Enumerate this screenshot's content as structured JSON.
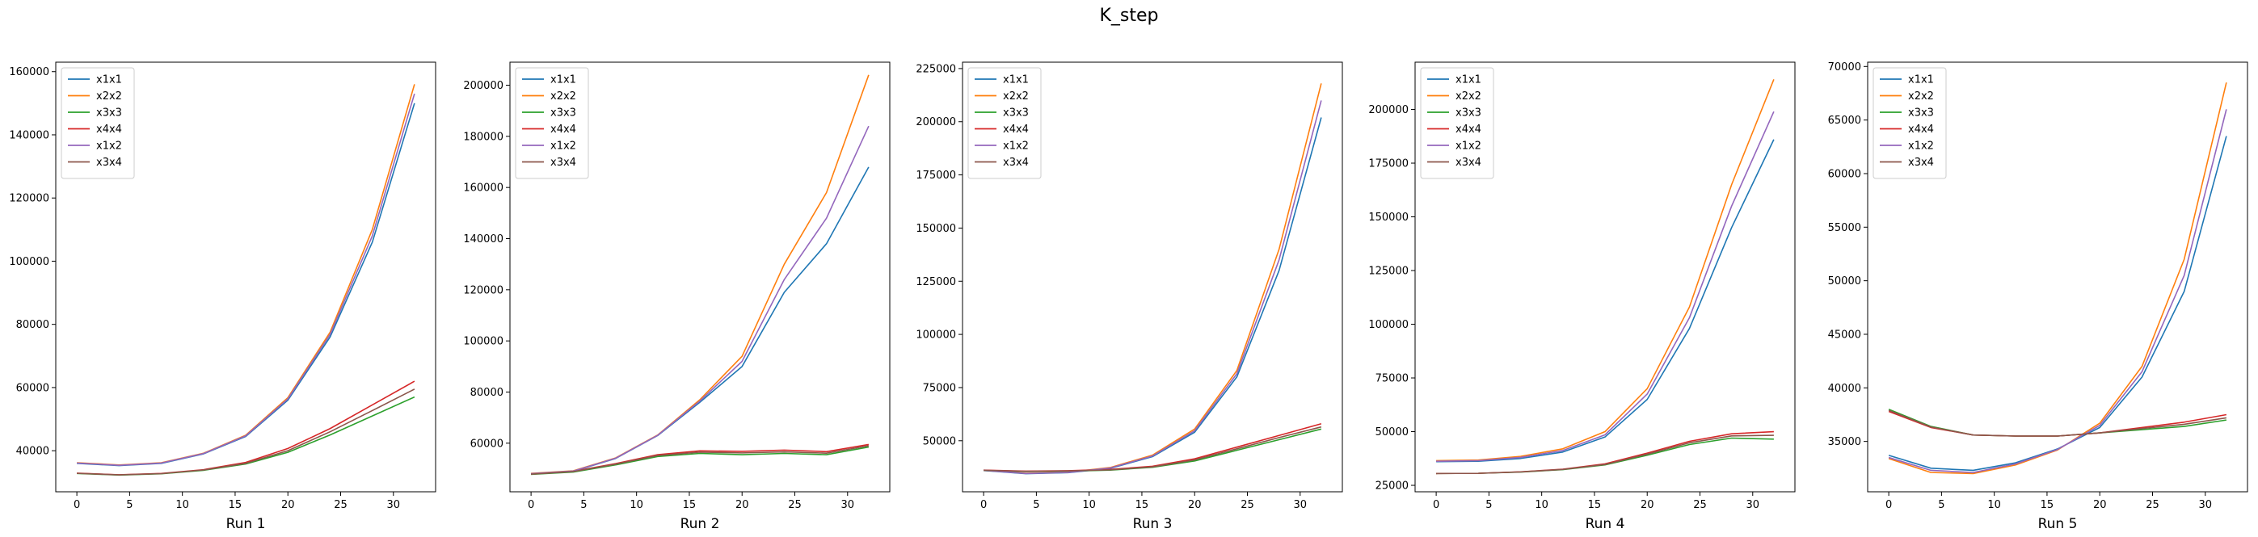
{
  "title": "K_step",
  "series_names": [
    "x1x1",
    "x2x2",
    "x3x3",
    "x4x4",
    "x1x2",
    "x3x4"
  ],
  "series_colors": [
    "#1f77b4",
    "#ff7f0e",
    "#2ca02c",
    "#d62728",
    "#9467bd",
    "#8c564b"
  ],
  "chart_data": [
    {
      "type": "line",
      "xlabel": "Run 1",
      "x": [
        0,
        4,
        8,
        12,
        16,
        20,
        24,
        28,
        32
      ],
      "xlim": [
        -2,
        34
      ],
      "ylim": [
        27000,
        163000
      ],
      "xticks": [
        0,
        5,
        10,
        15,
        20,
        25,
        30
      ],
      "yticks": [
        40000,
        60000,
        80000,
        100000,
        120000,
        140000,
        160000
      ],
      "legend": "upper-left",
      "series": [
        {
          "name": "x1x1",
          "values": [
            36000,
            35300,
            36000,
            39000,
            44500,
            56000,
            76000,
            106000,
            150000
          ]
        },
        {
          "name": "x2x2",
          "values": [
            36200,
            35500,
            36200,
            39200,
            44900,
            56800,
            77500,
            110000,
            156000
          ]
        },
        {
          "name": "x3x3",
          "values": [
            32800,
            32300,
            32700,
            33800,
            35800,
            39500,
            45000,
            51000,
            57000
          ]
        },
        {
          "name": "x4x4",
          "values": [
            32900,
            32400,
            32800,
            34000,
            36300,
            40700,
            47000,
            54500,
            62000
          ]
        },
        {
          "name": "x1x2",
          "values": [
            36100,
            35400,
            36100,
            39100,
            44700,
            56400,
            76800,
            108000,
            153000
          ]
        },
        {
          "name": "x3x4",
          "values": [
            32850,
            32350,
            32750,
            33900,
            36000,
            40000,
            46000,
            52700,
            59500
          ]
        }
      ]
    },
    {
      "type": "line",
      "xlabel": "Run 2",
      "x": [
        0,
        4,
        8,
        12,
        16,
        20,
        24,
        28,
        32
      ],
      "xlim": [
        -2,
        34
      ],
      "ylim": [
        41000,
        209000
      ],
      "xticks": [
        0,
        5,
        10,
        15,
        20,
        25,
        30
      ],
      "yticks": [
        40000,
        60000,
        80000,
        100000,
        120000,
        140000,
        160000,
        180000,
        200000
      ],
      "legend": "upper-left",
      "series": [
        {
          "name": "x1x1",
          "values": [
            48000,
            49000,
            54000,
            63000,
            76000,
            90000,
            119000,
            138000,
            168000
          ]
        },
        {
          "name": "x2x2",
          "values": [
            48200,
            49200,
            54200,
            63200,
            77000,
            94000,
            130000,
            158000,
            204000
          ]
        },
        {
          "name": "x3x3",
          "values": [
            47800,
            48700,
            51500,
            54800,
            56000,
            55500,
            56000,
            55500,
            58500
          ]
        },
        {
          "name": "x4x4",
          "values": [
            48000,
            49000,
            52000,
            55500,
            57000,
            56800,
            57300,
            56700,
            59500
          ]
        },
        {
          "name": "x1x2",
          "values": [
            48100,
            49100,
            54100,
            63100,
            76500,
            92000,
            124000,
            148000,
            184000
          ]
        },
        {
          "name": "x3x4",
          "values": [
            47900,
            48900,
            51800,
            55200,
            56500,
            56200,
            56600,
            56100,
            59000
          ]
        }
      ]
    },
    {
      "type": "line",
      "xlabel": "Run 3",
      "x": [
        0,
        4,
        8,
        12,
        16,
        20,
        24,
        28,
        32
      ],
      "xlim": [
        -2,
        34
      ],
      "ylim": [
        26000,
        228000
      ],
      "xticks": [
        0,
        5,
        10,
        15,
        20,
        25,
        30
      ],
      "yticks": [
        50000,
        75000,
        100000,
        125000,
        150000,
        175000,
        200000,
        225000
      ],
      "legend": "upper-left",
      "series": [
        {
          "name": "x1x1",
          "values": [
            36000,
            34500,
            35000,
            37000,
            42500,
            54000,
            80000,
            130000,
            202000
          ]
        },
        {
          "name": "x2x2",
          "values": [
            36200,
            34700,
            35200,
            37400,
            43200,
            55500,
            83000,
            140000,
            218000
          ]
        },
        {
          "name": "x3x3",
          "values": [
            36000,
            35500,
            35700,
            36200,
            37500,
            40500,
            45500,
            50500,
            55500
          ]
        },
        {
          "name": "x4x4",
          "values": [
            36200,
            35700,
            35900,
            36500,
            38000,
            41500,
            47000,
            52500,
            58000
          ]
        },
        {
          "name": "x1x2",
          "values": [
            36100,
            34600,
            35100,
            37200,
            42800,
            54700,
            81500,
            135000,
            210000
          ]
        },
        {
          "name": "x3x4",
          "values": [
            36100,
            35600,
            35800,
            36300,
            37700,
            41000,
            46200,
            51500,
            56500
          ]
        }
      ]
    },
    {
      "type": "line",
      "xlabel": "Run 4",
      "x": [
        0,
        4,
        8,
        12,
        16,
        20,
        24,
        28,
        32
      ],
      "xlim": [
        -2,
        34
      ],
      "ylim": [
        22000,
        222000
      ],
      "xticks": [
        0,
        5,
        10,
        15,
        20,
        25,
        30
      ],
      "yticks": [
        25000,
        50000,
        75000,
        100000,
        125000,
        150000,
        175000,
        200000
      ],
      "legend": "upper-left",
      "series": [
        {
          "name": "x1x1",
          "values": [
            36000,
            36200,
            37500,
            40500,
            47500,
            65000,
            98000,
            145000,
            186000
          ]
        },
        {
          "name": "x2x2",
          "values": [
            36500,
            36800,
            38500,
            42000,
            50000,
            70000,
            108000,
            165000,
            214000
          ]
        },
        {
          "name": "x3x3",
          "values": [
            30500,
            30600,
            31200,
            32300,
            34500,
            39000,
            44000,
            47000,
            46500
          ]
        },
        {
          "name": "x4x4",
          "values": [
            30500,
            30600,
            31300,
            32500,
            35000,
            40000,
            45500,
            49000,
            50000
          ]
        },
        {
          "name": "x1x2",
          "values": [
            36200,
            36500,
            38000,
            41200,
            48500,
            67500,
            103000,
            155000,
            199000
          ]
        },
        {
          "name": "x3x4",
          "values": [
            30500,
            30600,
            31250,
            32400,
            34700,
            39500,
            44800,
            48000,
            48300
          ]
        }
      ]
    },
    {
      "type": "line",
      "xlabel": "Run 5",
      "x": [
        0,
        4,
        8,
        12,
        16,
        20,
        24,
        28,
        32
      ],
      "xlim": [
        -2,
        34
      ],
      "ylim": [
        30300,
        70400
      ],
      "xticks": [
        0,
        5,
        10,
        15,
        20,
        25,
        30
      ],
      "yticks": [
        35000,
        40000,
        45000,
        50000,
        55000,
        60000,
        65000,
        70000
      ],
      "legend": "upper-left",
      "series": [
        {
          "name": "x1x1",
          "values": [
            33700,
            32500,
            32300,
            33000,
            34300,
            36300,
            41000,
            49000,
            63500
          ]
        },
        {
          "name": "x2x2",
          "values": [
            33400,
            32100,
            32000,
            32800,
            34200,
            36700,
            42000,
            52000,
            68500
          ]
        },
        {
          "name": "x3x3",
          "values": [
            38000,
            36400,
            35600,
            35500,
            35500,
            35800,
            36100,
            36400,
            37000
          ]
        },
        {
          "name": "x4x4",
          "values": [
            37800,
            36300,
            35600,
            35500,
            35500,
            35800,
            36300,
            36800,
            37500
          ]
        },
        {
          "name": "x1x2",
          "values": [
            33500,
            32300,
            32100,
            32900,
            34250,
            36500,
            41500,
            50500,
            66000
          ]
        },
        {
          "name": "x3x4",
          "values": [
            37900,
            36350,
            35600,
            35500,
            35500,
            35800,
            36200,
            36600,
            37200
          ]
        }
      ]
    }
  ]
}
